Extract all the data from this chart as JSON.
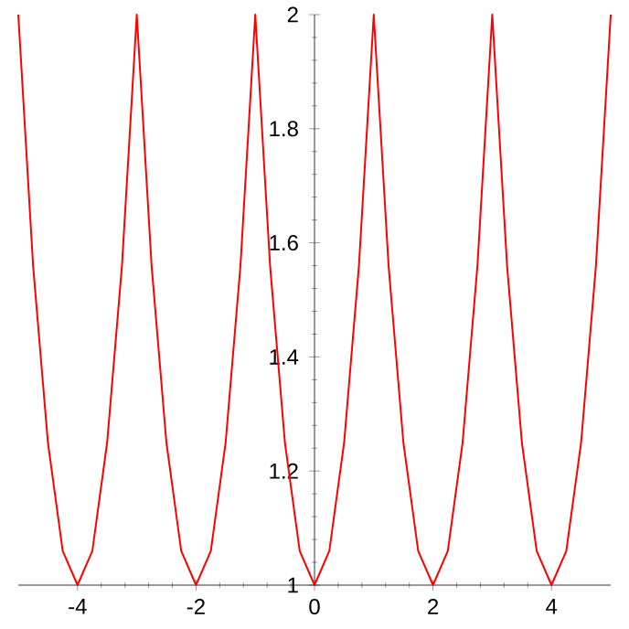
{
  "chart_data": {
    "type": "line",
    "x": [
      -5,
      -4.75,
      -4.5,
      -4.25,
      -4,
      -3.75,
      -3.5,
      -3.25,
      -3,
      -2.75,
      -2.5,
      -2.25,
      -2,
      -1.75,
      -1.5,
      -1.25,
      -1,
      -0.75,
      -0.5,
      -0.25,
      0,
      0.25,
      0.5,
      0.75,
      1,
      1.25,
      1.5,
      1.75,
      2,
      2.25,
      2.5,
      2.75,
      3,
      3.25,
      3.5,
      3.75,
      4,
      4.25,
      4.5,
      4.75,
      5
    ],
    "series": [
      {
        "color": "#ff0000",
        "values": [
          2,
          1.56,
          1.25,
          1.06,
          1,
          1.06,
          1.25,
          1.56,
          2,
          1.56,
          1.25,
          1.06,
          1,
          1.06,
          1.25,
          1.56,
          2,
          1.56,
          1.25,
          1.06,
          1,
          1.06,
          1.25,
          1.56,
          2,
          1.56,
          1.25,
          1.06,
          1,
          1.06,
          1.25,
          1.56,
          2,
          1.56,
          1.25,
          1.06,
          1,
          1.06,
          1.25,
          1.56,
          2
        ]
      }
    ],
    "xlim": [
      -5,
      5
    ],
    "ylim": [
      1,
      2
    ],
    "xticks": [
      -4,
      -2,
      0,
      2,
      4
    ],
    "yticks": [
      1,
      1.2,
      1.4,
      1.6,
      1.8,
      2
    ],
    "grid": false,
    "marker": "none",
    "line_style": "solid"
  }
}
